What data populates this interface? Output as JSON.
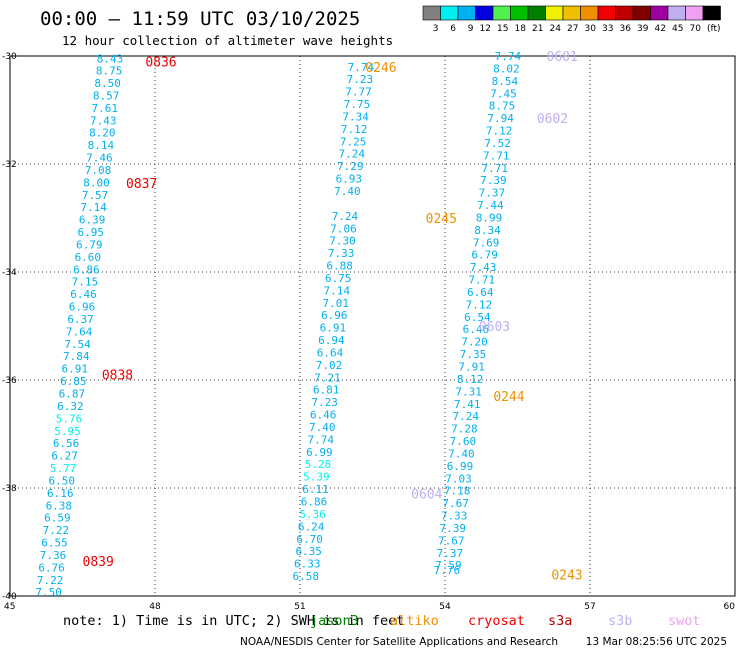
{
  "header": {
    "title": "00:00 – 11:59 UTC 03/10/2025",
    "subtitle": "12 hour collection of altimeter wave heights"
  },
  "legend": {
    "unit": "(ft)",
    "bins": [
      {
        "label": "3",
        "color": "#808080"
      },
      {
        "label": "6",
        "color": "#00f0f0"
      },
      {
        "label": "9",
        "color": "#00b0f0"
      },
      {
        "label": "12",
        "color": "#0000e0"
      },
      {
        "label": "15",
        "color": "#50f050"
      },
      {
        "label": "18",
        "color": "#00c000"
      },
      {
        "label": "21",
        "color": "#008000"
      },
      {
        "label": "24",
        "color": "#f0f000"
      },
      {
        "label": "27",
        "color": "#f0c000"
      },
      {
        "label": "30",
        "color": "#f09000"
      },
      {
        "label": "33",
        "color": "#f00000"
      },
      {
        "label": "36",
        "color": "#c00000"
      },
      {
        "label": "39",
        "color": "#800000"
      },
      {
        "label": "42",
        "color": "#a000a0"
      },
      {
        "label": "45",
        "color": "#c0b0f0"
      },
      {
        "label": "70",
        "color": "#f0a0f0"
      },
      {
        "label": "",
        "color": "#000000"
      }
    ]
  },
  "footer": {
    "note": "note:  1) Time is in UTC; 2) SWH is in feet",
    "credit": "NOAA/NESDIS Center for Satellite Applications and Research",
    "timestamp": "13 Mar 08:25:56 UTC 2025",
    "satellites": [
      {
        "name": "jason3",
        "color": "#008000"
      },
      {
        "name": "altiko",
        "color": "#f09000"
      },
      {
        "name": "cryosat",
        "color": "#f00000"
      },
      {
        "name": "s3a",
        "color": "#c00000"
      },
      {
        "name": "s3b",
        "color": "#c0b0f0"
      },
      {
        "name": "swot",
        "color": "#f0a0f0"
      }
    ]
  },
  "chart_data": {
    "type": "scatter",
    "xlim": [
      45,
      60
    ],
    "ylim": [
      -40,
      -30
    ],
    "x_ticks": [
      "45",
      "48",
      "51",
      "54",
      "57",
      "60"
    ],
    "y_ticks": [
      "-30",
      "-32",
      "-34",
      "-36",
      "-38",
      "-40"
    ],
    "grid": true,
    "tracks": [
      {
        "satellite": "cryosat",
        "color": "#f00000",
        "times": [
          {
            "label": "0836",
            "x": 47.8,
            "y": -30.1
          },
          {
            "label": "0837",
            "x": 47.4,
            "y": -32.35
          },
          {
            "label": "0838",
            "x": 46.9,
            "y": -35.9
          },
          {
            "label": "0839",
            "x": 46.5,
            "y": -39.35
          }
        ],
        "points": [
          {
            "x": 47.07,
            "y": -30.05,
            "v": "8.43"
          },
          {
            "x": 47.05,
            "y": -30.27,
            "v": "8.75"
          },
          {
            "x": 47.02,
            "y": -30.5,
            "v": "8.50"
          },
          {
            "x": 46.99,
            "y": -30.73,
            "v": "8.57"
          },
          {
            "x": 46.96,
            "y": -30.96,
            "v": "7.61"
          },
          {
            "x": 46.93,
            "y": -31.19,
            "v": "7.43"
          },
          {
            "x": 46.91,
            "y": -31.42,
            "v": "8.20"
          },
          {
            "x": 46.88,
            "y": -31.65,
            "v": "8.14"
          },
          {
            "x": 46.85,
            "y": -31.88,
            "v": "7.46"
          },
          {
            "x": 46.82,
            "y": -32.11,
            "v": "7.08"
          },
          {
            "x": 46.79,
            "y": -32.34,
            "v": "8.00"
          },
          {
            "x": 46.76,
            "y": -32.57,
            "v": "7.57"
          },
          {
            "x": 46.73,
            "y": -32.8,
            "v": "7.14"
          },
          {
            "x": 46.7,
            "y": -33.03,
            "v": "6.39"
          },
          {
            "x": 46.67,
            "y": -33.26,
            "v": "6.95"
          },
          {
            "x": 46.64,
            "y": -33.49,
            "v": "6.79"
          },
          {
            "x": 46.61,
            "y": -33.72,
            "v": "6.60"
          },
          {
            "x": 46.58,
            "y": -33.95,
            "v": "6.86"
          },
          {
            "x": 46.55,
            "y": -34.18,
            "v": "7.15"
          },
          {
            "x": 46.52,
            "y": -34.41,
            "v": "6.46"
          },
          {
            "x": 46.49,
            "y": -34.64,
            "v": "6.96"
          },
          {
            "x": 46.46,
            "y": -34.87,
            "v": "6.37"
          },
          {
            "x": 46.43,
            "y": -35.1,
            "v": "7.64"
          },
          {
            "x": 46.4,
            "y": -35.33,
            "v": "7.54"
          },
          {
            "x": 46.37,
            "y": -35.56,
            "v": "7.84"
          },
          {
            "x": 46.34,
            "y": -35.79,
            "v": "6.91"
          },
          {
            "x": 46.31,
            "y": -36.02,
            "v": "6.85"
          },
          {
            "x": 46.28,
            "y": -36.25,
            "v": "6.87"
          },
          {
            "x": 46.25,
            "y": -36.48,
            "v": "6.32"
          },
          {
            "x": 46.22,
            "y": -36.71,
            "v": "5.76"
          },
          {
            "x": 46.19,
            "y": -36.94,
            "v": "5.95"
          },
          {
            "x": 46.16,
            "y": -37.17,
            "v": "6.56"
          },
          {
            "x": 46.13,
            "y": -37.4,
            "v": "6.27"
          },
          {
            "x": 46.1,
            "y": -37.63,
            "v": "5.77"
          },
          {
            "x": 46.07,
            "y": -37.86,
            "v": "6.50"
          },
          {
            "x": 46.04,
            "y": -38.09,
            "v": "6.16"
          },
          {
            "x": 46.01,
            "y": -38.32,
            "v": "6.38"
          },
          {
            "x": 45.98,
            "y": -38.55,
            "v": "6.59"
          },
          {
            "x": 45.95,
            "y": -38.78,
            "v": "7.22"
          },
          {
            "x": 45.92,
            "y": -39.01,
            "v": "6.55"
          },
          {
            "x": 45.89,
            "y": -39.24,
            "v": "7.36"
          },
          {
            "x": 45.86,
            "y": -39.47,
            "v": "6.76"
          },
          {
            "x": 45.83,
            "y": -39.7,
            "v": "7.22"
          },
          {
            "x": 45.8,
            "y": -39.93,
            "v": "7.50"
          }
        ]
      },
      {
        "satellite": "altiko",
        "color": "#f09000",
        "times": [
          {
            "label": "0246",
            "x": 52.35,
            "y": -30.2
          },
          {
            "label": "0245",
            "x": 53.6,
            "y": -33.0
          },
          {
            "label": "0244",
            "x": 55.0,
            "y": -36.3
          },
          {
            "label": "0243",
            "x": 56.2,
            "y": -39.6
          }
        ],
        "points": [
          {
            "x": 52.26,
            "y": -30.2,
            "v": "7.74"
          },
          {
            "x": 52.24,
            "y": -30.43,
            "v": "7.23"
          },
          {
            "x": 52.21,
            "y": -30.66,
            "v": "7.77"
          },
          {
            "x": 52.18,
            "y": -30.89,
            "v": "7.75"
          },
          {
            "x": 52.15,
            "y": -31.12,
            "v": "7.34"
          },
          {
            "x": 52.12,
            "y": -31.35,
            "v": "7.12"
          },
          {
            "x": 52.1,
            "y": -31.58,
            "v": "7.25"
          },
          {
            "x": 52.07,
            "y": -31.81,
            "v": "7.24"
          },
          {
            "x": 52.04,
            "y": -32.04,
            "v": "7.29"
          },
          {
            "x": 52.01,
            "y": -32.27,
            "v": "6.93"
          },
          {
            "x": 51.98,
            "y": -32.5,
            "v": "7.40"
          },
          {
            "x": 51.93,
            "y": -32.96,
            "v": "7.24"
          },
          {
            "x": 51.9,
            "y": -33.19,
            "v": "7.06"
          },
          {
            "x": 51.88,
            "y": -33.42,
            "v": "7.30"
          },
          {
            "x": 51.85,
            "y": -33.65,
            "v": "7.33"
          },
          {
            "x": 51.82,
            "y": -33.88,
            "v": "6.88"
          },
          {
            "x": 51.79,
            "y": -34.11,
            "v": "6.75"
          },
          {
            "x": 51.76,
            "y": -34.34,
            "v": "7.14"
          },
          {
            "x": 51.74,
            "y": -34.57,
            "v": "7.01"
          },
          {
            "x": 51.71,
            "y": -34.8,
            "v": "6.96"
          },
          {
            "x": 51.68,
            "y": -35.03,
            "v": "6.91"
          },
          {
            "x": 51.65,
            "y": -35.26,
            "v": "6.94"
          },
          {
            "x": 51.62,
            "y": -35.49,
            "v": "6.64"
          },
          {
            "x": 51.6,
            "y": -35.72,
            "v": "7.02"
          },
          {
            "x": 51.57,
            "y": -35.95,
            "v": "7.21"
          },
          {
            "x": 51.54,
            "y": -36.18,
            "v": "6.81"
          },
          {
            "x": 51.51,
            "y": -36.41,
            "v": "7.23"
          },
          {
            "x": 51.48,
            "y": -36.64,
            "v": "6.46"
          },
          {
            "x": 51.46,
            "y": -36.87,
            "v": "7.40"
          },
          {
            "x": 51.43,
            "y": -37.1,
            "v": "7.74"
          },
          {
            "x": 51.4,
            "y": -37.33,
            "v": "6.99"
          },
          {
            "x": 51.37,
            "y": -37.56,
            "v": "5.28"
          },
          {
            "x": 51.34,
            "y": -37.79,
            "v": "5.39"
          },
          {
            "x": 51.32,
            "y": -38.02,
            "v": "6.11"
          },
          {
            "x": 51.29,
            "y": -38.25,
            "v": "6.86"
          },
          {
            "x": 51.26,
            "y": -38.48,
            "v": "5.36"
          },
          {
            "x": 51.23,
            "y": -38.71,
            "v": "6.24"
          },
          {
            "x": 51.2,
            "y": -38.94,
            "v": "6.70"
          },
          {
            "x": 51.18,
            "y": -39.17,
            "v": "6.35"
          },
          {
            "x": 51.15,
            "y": -39.4,
            "v": "6.33"
          },
          {
            "x": 51.12,
            "y": -39.63,
            "v": "6.58"
          }
        ]
      },
      {
        "satellite": "s3b",
        "color": "#c0b0f0",
        "times": [
          {
            "label": "0601",
            "x": 56.1,
            "y": -30.0
          },
          {
            "label": "0602",
            "x": 55.9,
            "y": -31.15
          },
          {
            "label": "0603",
            "x": 54.7,
            "y": -35.0
          },
          {
            "label": "0604",
            "x": 53.3,
            "y": -38.1
          }
        ],
        "points": [
          {
            "x": 55.3,
            "y": -30.0,
            "v": "7.74"
          },
          {
            "x": 55.27,
            "y": -30.23,
            "v": "8.02"
          },
          {
            "x": 55.24,
            "y": -30.46,
            "v": "8.54"
          },
          {
            "x": 55.21,
            "y": -30.69,
            "v": "7.45"
          },
          {
            "x": 55.18,
            "y": -30.92,
            "v": "8.75"
          },
          {
            "x": 55.15,
            "y": -31.15,
            "v": "7.94"
          },
          {
            "x": 55.12,
            "y": -31.38,
            "v": "7.12"
          },
          {
            "x": 55.09,
            "y": -31.61,
            "v": "7.52"
          },
          {
            "x": 55.06,
            "y": -31.84,
            "v": "7.71"
          },
          {
            "x": 55.03,
            "y": -32.07,
            "v": "7.71"
          },
          {
            "x": 55.0,
            "y": -32.3,
            "v": "7.39"
          },
          {
            "x": 54.97,
            "y": -32.53,
            "v": "7.37"
          },
          {
            "x": 54.94,
            "y": -32.76,
            "v": "7.44"
          },
          {
            "x": 54.91,
            "y": -32.99,
            "v": "8.99"
          },
          {
            "x": 54.88,
            "y": -33.22,
            "v": "8.34"
          },
          {
            "x": 54.85,
            "y": -33.45,
            "v": "7.69"
          },
          {
            "x": 54.82,
            "y": -33.68,
            "v": "6.79"
          },
          {
            "x": 54.79,
            "y": -33.91,
            "v": "7.43"
          },
          {
            "x": 54.76,
            "y": -34.14,
            "v": "7.71"
          },
          {
            "x": 54.73,
            "y": -34.37,
            "v": "6.64"
          },
          {
            "x": 54.7,
            "y": -34.6,
            "v": "7.12"
          },
          {
            "x": 54.67,
            "y": -34.83,
            "v": "6.54"
          },
          {
            "x": 54.64,
            "y": -35.06,
            "v": "6.46"
          },
          {
            "x": 54.61,
            "y": -35.29,
            "v": "7.20"
          },
          {
            "x": 54.58,
            "y": -35.52,
            "v": "7.35"
          },
          {
            "x": 54.55,
            "y": -35.75,
            "v": "7.91"
          },
          {
            "x": 54.52,
            "y": -35.98,
            "v": "8.12"
          },
          {
            "x": 54.49,
            "y": -36.21,
            "v": "7.31"
          },
          {
            "x": 54.46,
            "y": -36.44,
            "v": "7.41"
          },
          {
            "x": 54.43,
            "y": -36.67,
            "v": "7.24"
          },
          {
            "x": 54.4,
            "y": -36.9,
            "v": "7.28"
          },
          {
            "x": 54.37,
            "y": -37.13,
            "v": "7.60"
          },
          {
            "x": 54.34,
            "y": -37.36,
            "v": "7.40"
          },
          {
            "x": 54.31,
            "y": -37.59,
            "v": "6.99"
          },
          {
            "x": 54.28,
            "y": -37.82,
            "v": "7.03"
          },
          {
            "x": 54.25,
            "y": -38.05,
            "v": "7.18"
          },
          {
            "x": 54.22,
            "y": -38.28,
            "v": "7.67"
          },
          {
            "x": 54.19,
            "y": -38.51,
            "v": "7.33"
          },
          {
            "x": 54.16,
            "y": -38.74,
            "v": "7.39"
          },
          {
            "x": 54.13,
            "y": -38.97,
            "v": "7.67"
          },
          {
            "x": 54.1,
            "y": -39.2,
            "v": "7.37"
          },
          {
            "x": 54.07,
            "y": -39.43,
            "v": "7.59"
          },
          {
            "x": 54.04,
            "y": -39.52,
            "v": "7.76"
          }
        ]
      }
    ]
  }
}
